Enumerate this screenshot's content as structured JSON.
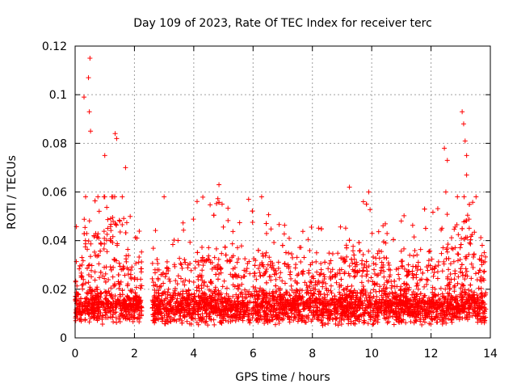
{
  "chart_data": {
    "type": "scatter",
    "title": "Day 109 of 2023, Rate Of TEC Index for receiver terc",
    "xlabel": "GPS time / hours",
    "ylabel": "ROTI / TECUs",
    "xlim": [
      0,
      14
    ],
    "ylim": [
      0,
      0.12
    ],
    "xticks": [
      0,
      2,
      4,
      6,
      8,
      10,
      12,
      14
    ],
    "yticks": [
      0,
      0.02,
      0.04,
      0.06,
      0.08,
      0.1,
      0.12
    ],
    "xtick_labels": [
      "0",
      "2",
      "4",
      "6",
      "8",
      "10",
      "12",
      "14"
    ],
    "ytick_labels": [
      "0",
      "0.02",
      "0.04",
      "0.06",
      "0.08",
      "0.1",
      "0.12"
    ],
    "grid": true,
    "marker": "+",
    "color": "#ff0000",
    "gap_hours": [
      2.25,
      2.6
    ],
    "notable_peaks": [
      {
        "x": 0.3,
        "y": 0.099
      },
      {
        "x": 0.45,
        "y": 0.107
      },
      {
        "x": 0.5,
        "y": 0.115
      },
      {
        "x": 0.48,
        "y": 0.093
      },
      {
        "x": 0.52,
        "y": 0.085
      },
      {
        "x": 1.0,
        "y": 0.075
      },
      {
        "x": 1.35,
        "y": 0.084
      },
      {
        "x": 1.4,
        "y": 0.082
      },
      {
        "x": 1.7,
        "y": 0.07
      },
      {
        "x": 3.0,
        "y": 0.058
      },
      {
        "x": 4.85,
        "y": 0.063
      },
      {
        "x": 5.85,
        "y": 0.057
      },
      {
        "x": 9.25,
        "y": 0.062
      },
      {
        "x": 9.9,
        "y": 0.06
      },
      {
        "x": 12.45,
        "y": 0.078
      },
      {
        "x": 12.55,
        "y": 0.073
      },
      {
        "x": 12.5,
        "y": 0.06
      },
      {
        "x": 13.05,
        "y": 0.093
      },
      {
        "x": 13.1,
        "y": 0.088
      },
      {
        "x": 13.15,
        "y": 0.081
      },
      {
        "x": 13.2,
        "y": 0.075
      },
      {
        "x": 13.2,
        "y": 0.067
      }
    ]
  }
}
